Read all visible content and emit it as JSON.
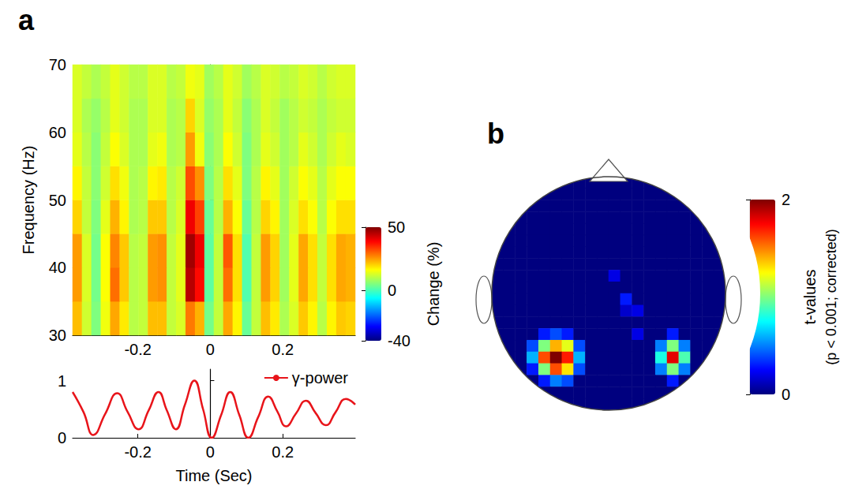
{
  "chart_data": [
    {
      "panel": "a",
      "type": "heatmap",
      "ylabel": "Frequency (Hz)",
      "x": [
        -0.367,
        -0.341,
        -0.315,
        -0.289,
        -0.263,
        -0.237,
        -0.211,
        -0.185,
        -0.159,
        -0.133,
        -0.107,
        -0.081,
        -0.055,
        -0.029,
        -0.003,
        0.023,
        0.049,
        0.075,
        0.101,
        0.127,
        0.153,
        0.179,
        0.205,
        0.231,
        0.257,
        0.283,
        0.309,
        0.335,
        0.361,
        0.387
      ],
      "y": [
        32.5,
        37.5,
        42.5,
        47.5,
        52.5,
        57.5,
        62.5,
        67.5
      ],
      "values": [
        [
          22,
          12,
          5,
          15,
          24,
          18,
          10,
          11,
          22,
          22,
          11,
          13,
          28,
          23,
          4,
          11,
          24,
          17,
          3,
          11,
          22,
          18,
          9,
          13,
          21,
          17,
          10,
          17,
          21,
          20
        ],
        [
          25,
          13,
          4,
          16,
          29,
          21,
          10,
          11,
          25,
          26,
          11,
          14,
          45,
          38,
          2,
          11,
          29,
          19,
          1,
          11,
          25,
          20,
          8,
          14,
          24,
          19,
          11,
          19,
          24,
          23
        ],
        [
          25,
          13,
          4,
          16,
          27,
          21,
          10,
          11,
          25,
          26,
          11,
          14,
          47,
          40,
          2,
          11,
          31,
          19,
          1,
          11,
          25,
          20,
          8,
          14,
          24,
          19,
          11,
          19,
          24,
          23
        ],
        [
          20,
          11,
          5,
          14,
          23,
          17,
          9,
          10,
          21,
          21,
          10,
          13,
          40,
          33,
          3,
          10,
          23,
          16,
          3,
          10,
          20,
          17,
          8,
          13,
          19,
          16,
          10,
          16,
          19,
          19
        ],
        [
          17,
          11,
          6,
          12,
          19,
          15,
          9,
          10,
          17,
          18,
          10,
          12,
          32,
          26,
          5,
          10,
          19,
          14,
          5,
          10,
          17,
          14,
          8,
          12,
          16,
          14,
          10,
          14,
          16,
          16
        ],
        [
          14,
          10,
          6,
          11,
          16,
          13,
          9,
          9,
          14,
          15,
          9,
          10,
          25,
          15,
          6,
          9,
          16,
          12,
          5,
          9,
          14,
          12,
          8,
          10,
          14,
          12,
          9,
          12,
          14,
          13
        ],
        [
          13,
          9,
          7,
          10,
          14,
          12,
          9,
          9,
          13,
          13,
          9,
          10,
          20,
          13,
          7,
          9,
          14,
          11,
          6,
          9,
          13,
          11,
          8,
          10,
          12,
          11,
          9,
          11,
          12,
          12
        ],
        [
          13,
          11,
          9,
          11,
          14,
          12,
          10,
          10,
          13,
          13,
          10,
          11,
          15,
          14,
          8,
          10,
          14,
          12,
          8,
          10,
          13,
          12,
          10,
          11,
          13,
          12,
          10,
          12,
          13,
          13
        ]
      ],
      "xlim": [
        -0.38,
        0.4
      ],
      "xticks": [
        -0.2,
        0,
        0.2
      ],
      "ylim": [
        30,
        70
      ],
      "yticks": [
        30,
        40,
        50,
        60,
        70
      ],
      "colorbar": {
        "label": "Change (%)",
        "range": [
          -40,
          50
        ],
        "ticks": [
          -40,
          0,
          50
        ]
      }
    },
    {
      "type": "line",
      "xlabel": "Time (Sec)",
      "xlim": [
        -0.38,
        0.4
      ],
      "xticks": [
        -0.2,
        0,
        0.2
      ],
      "ylim": [
        0,
        1.2
      ],
      "yticks": [
        0,
        1
      ],
      "legend": "upper right",
      "series": [
        {
          "name": "γ-power",
          "color": "#e8141a",
          "x": [
            -0.38,
            -0.35,
            -0.323,
            -0.29,
            -0.257,
            -0.228,
            -0.198,
            -0.17,
            -0.143,
            -0.12,
            -0.095,
            -0.07,
            -0.044,
            -0.02,
            0.004,
            0.03,
            0.055,
            0.08,
            0.105,
            0.132,
            0.16,
            0.185,
            0.209,
            0.236,
            0.264,
            0.29,
            0.319,
            0.346,
            0.374,
            0.4
          ],
          "values": [
            0.8,
            0.45,
            0.05,
            0.42,
            0.78,
            0.45,
            0.15,
            0.48,
            0.8,
            0.48,
            0.15,
            0.58,
            1.0,
            0.5,
            0.0,
            0.4,
            0.8,
            0.4,
            0.0,
            0.36,
            0.72,
            0.46,
            0.2,
            0.42,
            0.65,
            0.44,
            0.22,
            0.45,
            0.68,
            0.58
          ]
        }
      ]
    },
    {
      "panel": "b",
      "type": "topography",
      "values": [
        [
          null,
          null,
          null,
          null,
          null,
          0,
          0,
          0,
          0,
          0,
          0,
          0,
          0,
          0,
          0,
          null,
          null,
          null,
          null,
          null
        ],
        [
          null,
          null,
          null,
          0,
          0,
          0,
          0,
          0,
          0,
          0,
          0,
          0,
          0,
          0,
          0,
          0,
          0,
          null,
          null,
          null
        ],
        [
          null,
          null,
          0,
          0,
          0,
          0,
          0,
          0,
          0,
          0,
          0,
          0,
          0,
          0,
          0,
          0,
          0,
          0,
          null,
          null
        ],
        [
          null,
          0,
          0,
          0,
          0,
          0,
          0,
          0,
          0,
          0,
          0,
          0,
          0,
          0,
          0,
          0,
          0,
          0,
          0,
          null
        ],
        [
          null,
          0,
          0,
          0,
          0,
          0,
          0,
          0,
          0,
          0,
          0,
          0,
          0,
          0,
          0,
          0,
          0,
          0,
          0,
          null
        ],
        [
          0,
          0,
          0,
          0,
          0,
          0,
          0,
          0,
          0,
          0,
          0,
          0,
          0,
          0,
          0,
          0,
          0,
          0,
          0,
          0
        ],
        [
          0,
          0,
          0,
          0,
          0,
          0,
          0,
          0,
          0,
          0,
          0,
          0,
          0,
          0,
          0,
          0,
          0,
          0,
          0,
          0
        ],
        [
          0,
          0,
          0,
          0,
          0,
          0,
          0,
          0,
          0,
          0,
          0,
          0,
          0,
          0,
          0,
          0,
          0,
          0,
          0,
          0
        ],
        [
          0,
          0,
          0,
          0,
          0,
          0,
          0,
          0,
          0,
          0,
          0.2,
          0,
          0,
          0,
          0,
          0,
          0,
          0,
          0,
          0
        ],
        [
          0,
          0,
          0,
          0,
          0,
          0,
          0,
          0,
          0,
          0,
          0,
          0,
          0,
          0,
          0,
          0,
          0,
          0,
          0,
          0
        ],
        [
          0,
          0,
          0,
          0,
          0,
          0,
          0,
          0,
          0,
          0,
          0,
          0.3,
          0,
          0,
          0,
          0,
          0,
          0,
          0,
          0
        ],
        [
          0,
          0,
          0,
          0,
          0,
          0,
          0,
          0,
          0,
          0,
          0,
          0.15,
          0.2,
          0,
          0,
          0,
          0,
          0,
          0,
          0
        ],
        [
          0,
          0,
          0,
          0,
          0,
          0,
          0,
          0,
          0,
          0,
          0,
          0,
          0,
          0,
          0,
          0,
          0,
          0,
          0,
          0
        ],
        [
          0,
          0,
          0,
          0,
          0.3,
          0.4,
          0.3,
          0,
          0,
          0,
          0,
          0,
          0.2,
          0,
          0,
          0.3,
          0,
          0,
          0,
          0
        ],
        [
          0,
          0,
          0,
          0.4,
          1,
          1.4,
          1.2,
          0.4,
          0,
          0,
          0,
          0,
          0,
          0,
          0.5,
          1,
          0.5,
          0,
          0,
          0
        ],
        [
          null,
          0,
          0,
          0.6,
          1.6,
          2,
          1.7,
          0.6,
          0,
          0,
          0,
          0,
          0,
          0,
          0.8,
          1.8,
          0.9,
          0,
          0,
          null
        ],
        [
          null,
          0,
          0,
          0.3,
          1,
          1.6,
          1.3,
          0.4,
          0,
          0,
          0,
          0,
          0,
          0,
          0.5,
          1,
          0.5,
          0,
          0,
          null
        ],
        [
          null,
          null,
          0,
          0,
          0.3,
          0.5,
          0.4,
          0,
          0,
          0,
          0,
          0,
          0,
          0,
          0,
          0.3,
          0,
          0,
          null,
          null
        ],
        [
          null,
          null,
          null,
          0,
          0,
          0,
          0,
          0,
          0,
          0,
          0,
          0,
          0,
          0,
          0,
          0,
          0,
          null,
          null,
          null
        ],
        [
          null,
          null,
          null,
          null,
          null,
          0,
          0,
          0,
          0,
          0,
          0,
          0,
          0,
          0,
          0,
          null,
          null,
          null,
          null,
          null
        ]
      ],
      "colorbar": {
        "label": "t-values",
        "note": "(p < 0.001; corrected)",
        "range": [
          0,
          2
        ],
        "ticks": [
          0,
          2
        ]
      }
    }
  ]
}
